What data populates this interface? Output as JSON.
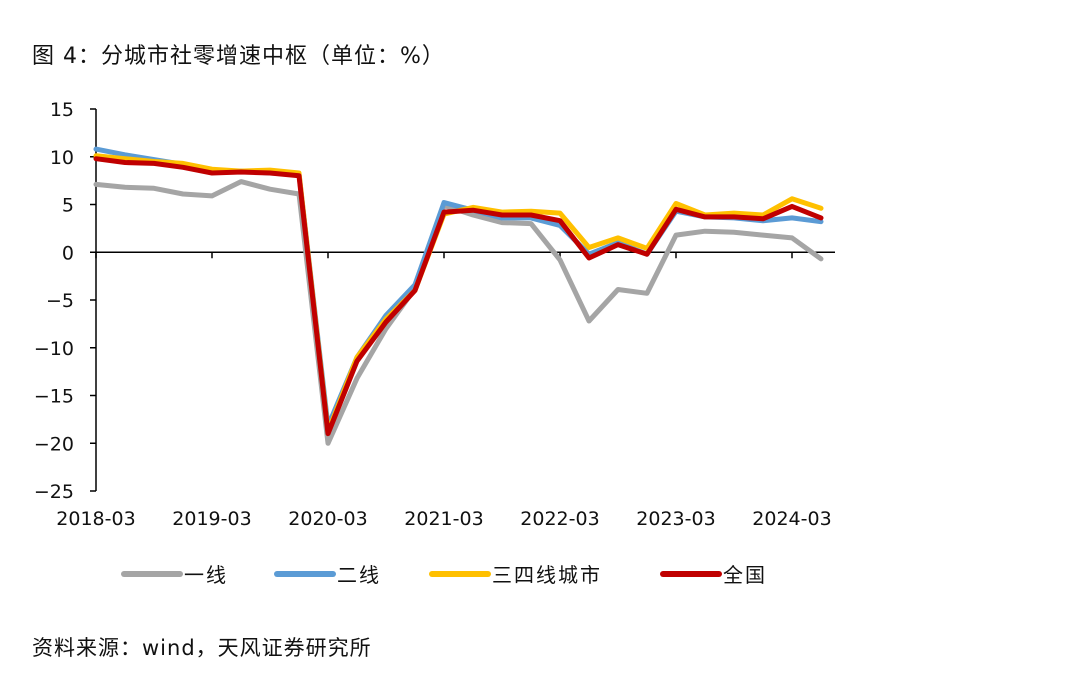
{
  "title": "图 4：分城市社零增速中枢（单位：%）",
  "source": "资料来源：wind，天风证券研究所",
  "chart_data": {
    "type": "line",
    "title": "图 4：分城市社零增速中枢（单位：%）",
    "xlabel": "",
    "ylabel": "",
    "ylim": [
      -25,
      15
    ],
    "yticks": [
      15,
      10,
      5,
      0,
      -5,
      -10,
      -15,
      -20,
      -25
    ],
    "xtick_labels": [
      "2018-03",
      "2019-03",
      "2020-03",
      "2021-03",
      "2022-03",
      "2023-03",
      "2024-03"
    ],
    "x": [
      "2018-03",
      "2018-06",
      "2018-09",
      "2018-12",
      "2019-03",
      "2019-06",
      "2019-09",
      "2019-12",
      "2020-03",
      "2020-06",
      "2020-09",
      "2020-12",
      "2021-03",
      "2021-06",
      "2021-09",
      "2021-12",
      "2022-03",
      "2022-06",
      "2022-09",
      "2022-12",
      "2023-03",
      "2023-06",
      "2023-09",
      "2023-12",
      "2024-03",
      "2024-06"
    ],
    "grid": false,
    "legend_position": "bottom",
    "series": [
      {
        "name": "一线",
        "color": "#A5A5A5",
        "values": [
          7.1,
          6.8,
          6.7,
          6.1,
          5.9,
          7.4,
          6.6,
          6.1,
          -20.0,
          -13.2,
          -8.0,
          -3.8,
          4.9,
          3.9,
          3.1,
          3.0,
          -0.8,
          -7.2,
          -3.9,
          -4.3,
          1.8,
          2.2,
          2.1,
          1.8,
          1.5,
          -0.7
        ]
      },
      {
        "name": "二线",
        "color": "#5B9BD5",
        "values": [
          10.8,
          10.2,
          9.7,
          9.2,
          8.5,
          8.5,
          8.3,
          8.2,
          -18.2,
          -11.0,
          -6.6,
          -3.4,
          5.2,
          4.4,
          3.6,
          3.6,
          2.8,
          -0.2,
          1.0,
          -0.2,
          4.3,
          3.7,
          3.6,
          3.3,
          3.6,
          3.2
        ]
      },
      {
        "name": "三四线城市",
        "color": "#FFC000",
        "values": [
          10.1,
          9.8,
          9.5,
          9.3,
          8.7,
          8.5,
          8.6,
          8.3,
          -18.8,
          -11.0,
          -7.0,
          -4.0,
          4.0,
          4.7,
          4.2,
          4.3,
          4.1,
          0.5,
          1.5,
          0.4,
          5.1,
          3.9,
          4.1,
          3.9,
          5.6,
          4.6
        ]
      },
      {
        "name": "全国",
        "color": "#C00000",
        "values": [
          9.8,
          9.4,
          9.3,
          8.9,
          8.3,
          8.4,
          8.3,
          8.0,
          -19.0,
          -11.4,
          -7.3,
          -4.0,
          4.2,
          4.4,
          3.9,
          3.9,
          3.3,
          -0.6,
          0.8,
          -0.2,
          4.5,
          3.7,
          3.7,
          3.5,
          4.8,
          3.6
        ]
      }
    ]
  }
}
